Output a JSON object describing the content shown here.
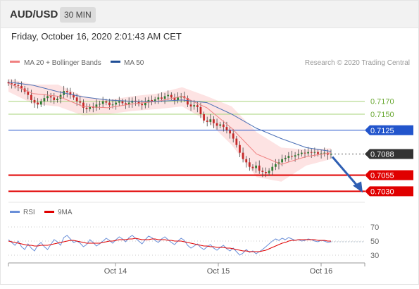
{
  "header": {
    "symbol": "AUD/USD",
    "timeframe": "30 MIN",
    "timestamp": "Friday, October 16, 2020 2:01:43 AM CET"
  },
  "colors": {
    "bollinger_fill": "#fcdada",
    "ma20": "#f08080",
    "ma50": "#4a6fb5",
    "resistance_green": "#a7d37a",
    "pivot_blue": "#2255cc",
    "support_red": "#e00000",
    "price_tag": "#333333",
    "candle_up": "#2e7d32",
    "candle_down": "#c62828",
    "rsi": "#6a8fd8",
    "rsi_ma": "#e00000",
    "arrow": "#2f5fb3"
  },
  "legend": {
    "ma20_label": "MA 20 + Bollinger Bands",
    "ma50_label": "MA 50",
    "copyright": "Research © 2020 Trading Central",
    "rsi_label": "RSI",
    "rsi_ma_label": "9MA"
  },
  "chart_data": [
    {
      "type": "line",
      "description_series": "AUD/USD 30-minute candles with moving averages",
      "ylim": [
        0.7015,
        0.7218
      ],
      "x_ticks": [
        "Oct 14",
        "Oct 15",
        "Oct 16"
      ],
      "levels": [
        {
          "value": 0.717,
          "label": "0.7170",
          "kind": "resistance"
        },
        {
          "value": 0.715,
          "label": "0.7150",
          "kind": "resistance"
        },
        {
          "value": 0.7125,
          "label": "0.7125",
          "kind": "pivot"
        },
        {
          "value": 0.7088,
          "label": "0.7088",
          "kind": "last_price"
        },
        {
          "value": 0.7055,
          "label": "0.7055",
          "kind": "support"
        },
        {
          "value": 0.703,
          "label": "0.7030",
          "kind": "support"
        }
      ],
      "series": [
        {
          "name": "MA 20 + Bollinger Bands",
          "x": [
            0,
            8,
            16,
            24,
            32,
            40,
            48,
            56,
            64,
            72,
            80,
            88,
            96,
            104
          ],
          "values": [
            0.7198,
            0.7182,
            0.7178,
            0.7162,
            0.716,
            0.7166,
            0.717,
            0.7178,
            0.716,
            0.7128,
            0.7088,
            0.7072,
            0.7084,
            0.709
          ]
        },
        {
          "name": "MA 50",
          "x": [
            0,
            8,
            16,
            24,
            32,
            40,
            48,
            56,
            64,
            72,
            80,
            88,
            96,
            104
          ],
          "values": [
            0.72,
            0.7195,
            0.7185,
            0.7177,
            0.7172,
            0.717,
            0.717,
            0.7172,
            0.7168,
            0.715,
            0.7128,
            0.7112,
            0.7098,
            0.7092
          ]
        }
      ],
      "bollinger": {
        "x": [
          0,
          8,
          16,
          24,
          32,
          40,
          48,
          56,
          64,
          72,
          80,
          88,
          96,
          104
        ],
        "upper": [
          0.7205,
          0.7196,
          0.7196,
          0.7178,
          0.7172,
          0.7178,
          0.7182,
          0.7192,
          0.7178,
          0.7162,
          0.7122,
          0.7098,
          0.7095,
          0.7097
        ],
        "lower": [
          0.7185,
          0.7166,
          0.7162,
          0.7148,
          0.715,
          0.7155,
          0.7158,
          0.7162,
          0.714,
          0.7102,
          0.7052,
          0.7045,
          0.707,
          0.708
        ]
      },
      "closes": [
        0.7198,
        0.7197,
        0.7195,
        0.7194,
        0.719,
        0.7185,
        0.718,
        0.7172,
        0.7168,
        0.7165,
        0.717,
        0.7175,
        0.7178,
        0.7176,
        0.7172,
        0.7174,
        0.718,
        0.7186,
        0.7184,
        0.718,
        0.7176,
        0.717,
        0.7168,
        0.716,
        0.7158,
        0.7162,
        0.716,
        0.7165,
        0.7166,
        0.717,
        0.7168,
        0.7164,
        0.7165,
        0.7168,
        0.717,
        0.7167,
        0.7165,
        0.7168,
        0.7171,
        0.7169,
        0.7166,
        0.7164,
        0.7168,
        0.7172,
        0.717,
        0.7173,
        0.7176,
        0.7174,
        0.7178,
        0.718,
        0.7176,
        0.7172,
        0.7176,
        0.7178,
        0.7175,
        0.7165,
        0.7162,
        0.7164,
        0.7161,
        0.715,
        0.714,
        0.7138,
        0.7142,
        0.7136,
        0.7132,
        0.7134,
        0.713,
        0.7125,
        0.712,
        0.7112,
        0.7102,
        0.709,
        0.708,
        0.7075,
        0.7068,
        0.7066,
        0.707,
        0.7062,
        0.706,
        0.7058,
        0.7062,
        0.7068,
        0.7072,
        0.7075,
        0.708,
        0.7082,
        0.7085,
        0.7084,
        0.7086,
        0.7088,
        0.709,
        0.7089,
        0.7091,
        0.709,
        0.7091,
        0.7088,
        0.7089,
        0.709,
        0.7087,
        0.7088
      ],
      "forecast_arrow": {
        "from": 0.7088,
        "to": 0.703
      }
    },
    {
      "type": "line",
      "ylim": [
        20,
        80
      ],
      "y_ticks": [
        70,
        50,
        30
      ],
      "series": [
        {
          "name": "RSI",
          "values": [
            52,
            48,
            44,
            50,
            42,
            38,
            46,
            40,
            36,
            44,
            48,
            42,
            38,
            45,
            52,
            49,
            44,
            55,
            58,
            53,
            48,
            50,
            47,
            42,
            45,
            52,
            48,
            43,
            46,
            50,
            54,
            51,
            47,
            52,
            56,
            53,
            49,
            55,
            58,
            54,
            50,
            46,
            52,
            57,
            55,
            51,
            48,
            53,
            56,
            52,
            48,
            45,
            50,
            54,
            51,
            44,
            40,
            43,
            46,
            41,
            38,
            42,
            45,
            40,
            37,
            41,
            44,
            39,
            36,
            40,
            35,
            30,
            33,
            38,
            34,
            36,
            32,
            35,
            38,
            42,
            46,
            50,
            53,
            51,
            54,
            52,
            55,
            53,
            51,
            52,
            50,
            51,
            53,
            52,
            50,
            49,
            51,
            50,
            48,
            49
          ]
        },
        {
          "name": "9MA",
          "values": [
            50,
            49,
            48,
            47,
            46,
            45,
            44,
            44,
            43,
            43,
            44,
            44,
            44,
            45,
            46,
            47,
            48,
            49,
            50,
            51,
            51,
            50,
            49,
            48,
            47,
            47,
            47,
            47,
            47,
            48,
            49,
            50,
            50,
            51,
            52,
            52,
            52,
            53,
            53,
            54,
            53,
            52,
            52,
            52,
            53,
            53,
            52,
            52,
            52,
            51,
            51,
            50,
            50,
            50,
            49,
            48,
            47,
            46,
            45,
            44,
            43,
            43,
            42,
            42,
            41,
            41,
            41,
            40,
            40,
            39,
            38,
            37,
            36,
            36,
            35,
            35,
            35,
            35,
            36,
            37,
            39,
            41,
            43,
            45,
            47,
            48,
            50,
            51,
            51,
            52,
            52,
            52,
            52,
            52,
            52,
            51,
            51,
            51,
            50,
            50
          ]
        }
      ]
    }
  ]
}
